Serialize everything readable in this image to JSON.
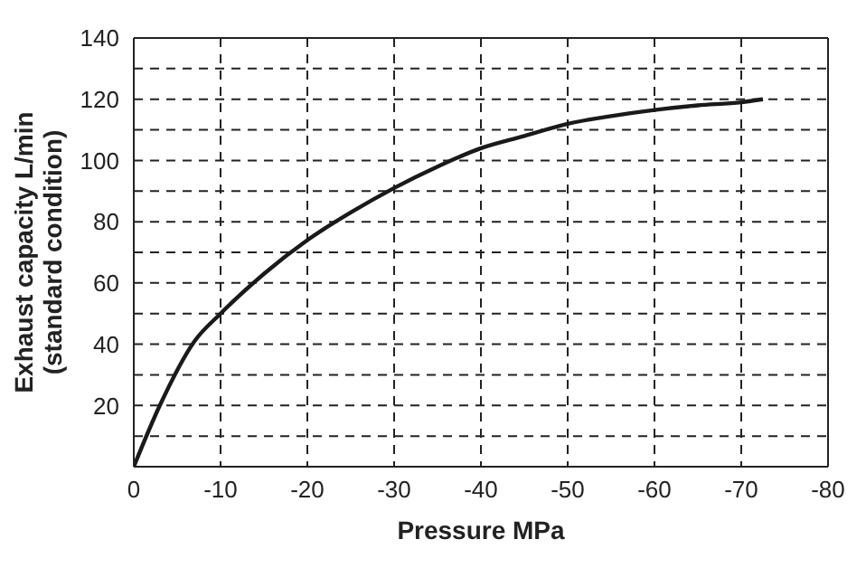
{
  "chart_data": {
    "type": "line",
    "xlabel": "Pressure MPa",
    "ylabel": "Exhaust capacity L/min\n(standard condition)",
    "x": [
      0,
      -3,
      -7,
      -10,
      -15,
      -20,
      -25,
      -30,
      -35,
      -40,
      -45,
      -50,
      -55,
      -60,
      -65,
      -70,
      -72.5
    ],
    "series": [
      {
        "color": "#1a1a1a",
        "values": [
          0,
          20,
          41,
          50,
          63,
          74,
          83,
          91,
          98,
          104,
          108,
          112,
          114.5,
          116.5,
          118,
          119,
          120
        ]
      }
    ],
    "xlim": [
      0,
      -80
    ],
    "xticks": [
      0,
      -10,
      -20,
      -30,
      -40,
      -50,
      -60,
      -70,
      -80
    ],
    "ylim": [
      0,
      140
    ],
    "yticks": [
      {
        "value": 0,
        "label": null
      },
      {
        "value": 10,
        "label": null
      },
      20,
      {
        "value": 30,
        "label": null
      },
      40,
      {
        "value": 50,
        "label": null
      },
      60,
      {
        "value": 70,
        "label": null
      },
      80,
      {
        "value": 90,
        "label": null
      },
      100,
      {
        "value": 110,
        "label": null
      },
      120,
      {
        "value": 130,
        "label": null
      },
      140
    ],
    "grid": true,
    "marker": "none",
    "line_style": "solid"
  }
}
